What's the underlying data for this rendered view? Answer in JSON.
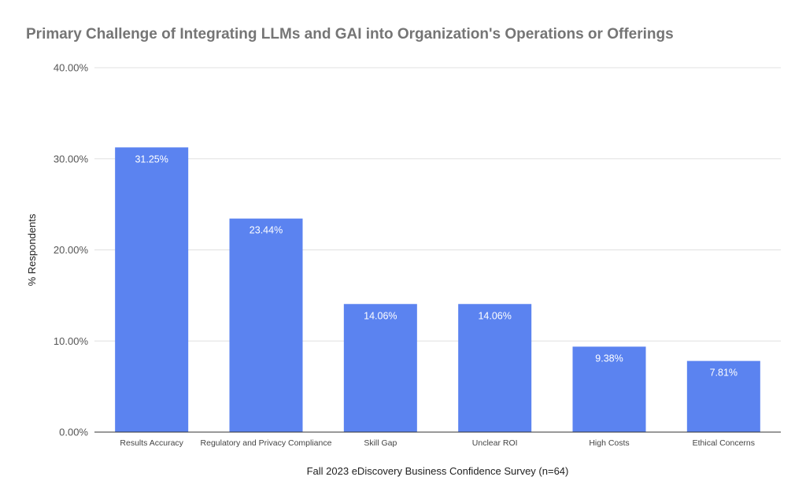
{
  "chart_data": {
    "type": "bar",
    "title": "Primary Challenge of Integrating LLMs and GAI into Organization's Operations or Offerings",
    "xlabel": "Fall 2023 eDiscovery Business Confidence Survey (n=64)",
    "ylabel": "% Respondents",
    "categories": [
      "Results Accuracy",
      "Regulatory and Privacy Compliance",
      "Skill Gap",
      "Unclear ROI",
      "High Costs",
      "Ethical Concerns"
    ],
    "values": [
      31.25,
      23.44,
      14.06,
      14.06,
      9.38,
      7.81
    ],
    "data_labels": [
      "31.25%",
      "23.44%",
      "14.06%",
      "14.06%",
      "9.38%",
      "7.81%"
    ],
    "ylim": [
      0,
      40
    ],
    "yticks": [
      0,
      10,
      20,
      30,
      40
    ],
    "ytick_labels": [
      "0.00%",
      "10.00%",
      "20.00%",
      "30.00%",
      "40.00%"
    ],
    "grid": true,
    "bar_color": "#5b83f0"
  }
}
